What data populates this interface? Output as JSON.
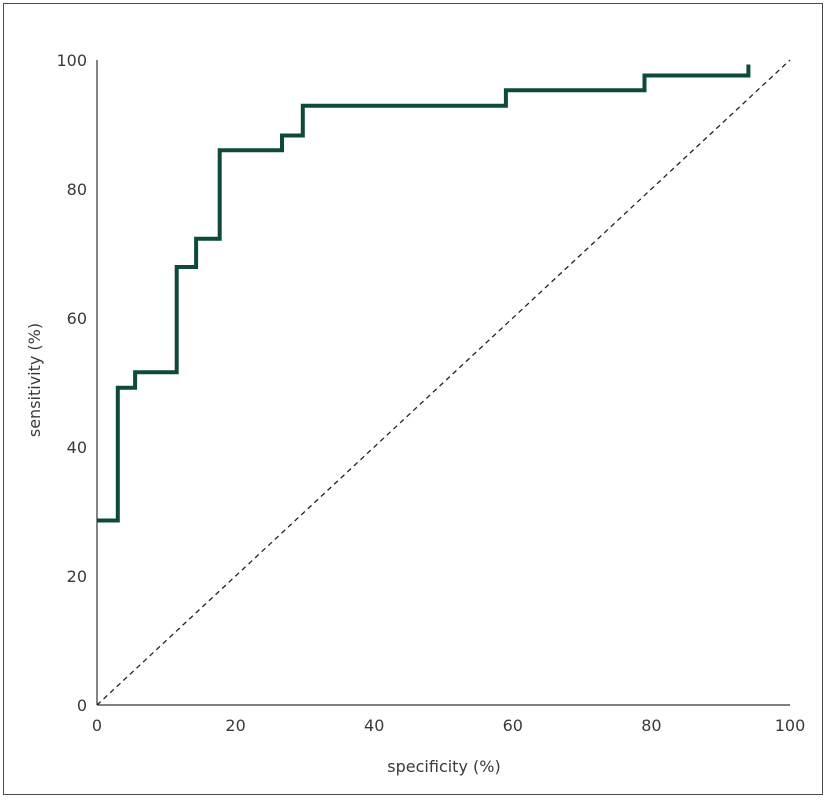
{
  "chart_data": {
    "type": "line",
    "title": "",
    "xlabel": "specificity (%)",
    "ylabel": "sensitivity (%)",
    "xlim": [
      0,
      100
    ],
    "ylim": [
      0,
      100
    ],
    "x_ticks": [
      0,
      20,
      40,
      60,
      80,
      100
    ],
    "y_ticks": [
      0,
      20,
      40,
      60,
      80,
      100
    ],
    "grid": false,
    "legend": "none",
    "series": [
      {
        "style": "step",
        "color": "#0e4a3c",
        "x": [
          0,
          3,
          3,
          5.5,
          5.5,
          11.5,
          11.5,
          14.3,
          14.3,
          17.7,
          17.7,
          26.7,
          26.7,
          29.7,
          29.7,
          59,
          59,
          79,
          79,
          94,
          94
        ],
        "y": [
          28.6,
          28.6,
          49.2,
          49.2,
          51.6,
          51.6,
          67.9,
          67.9,
          72.3,
          72.3,
          86.0,
          86.0,
          88.3,
          88.3,
          92.9,
          92.9,
          95.3,
          95.3,
          97.6,
          97.6,
          99.3
        ]
      },
      {
        "style": "dashed",
        "color": "#222222",
        "x": [
          0,
          100
        ],
        "y": [
          0,
          100
        ]
      }
    ]
  }
}
